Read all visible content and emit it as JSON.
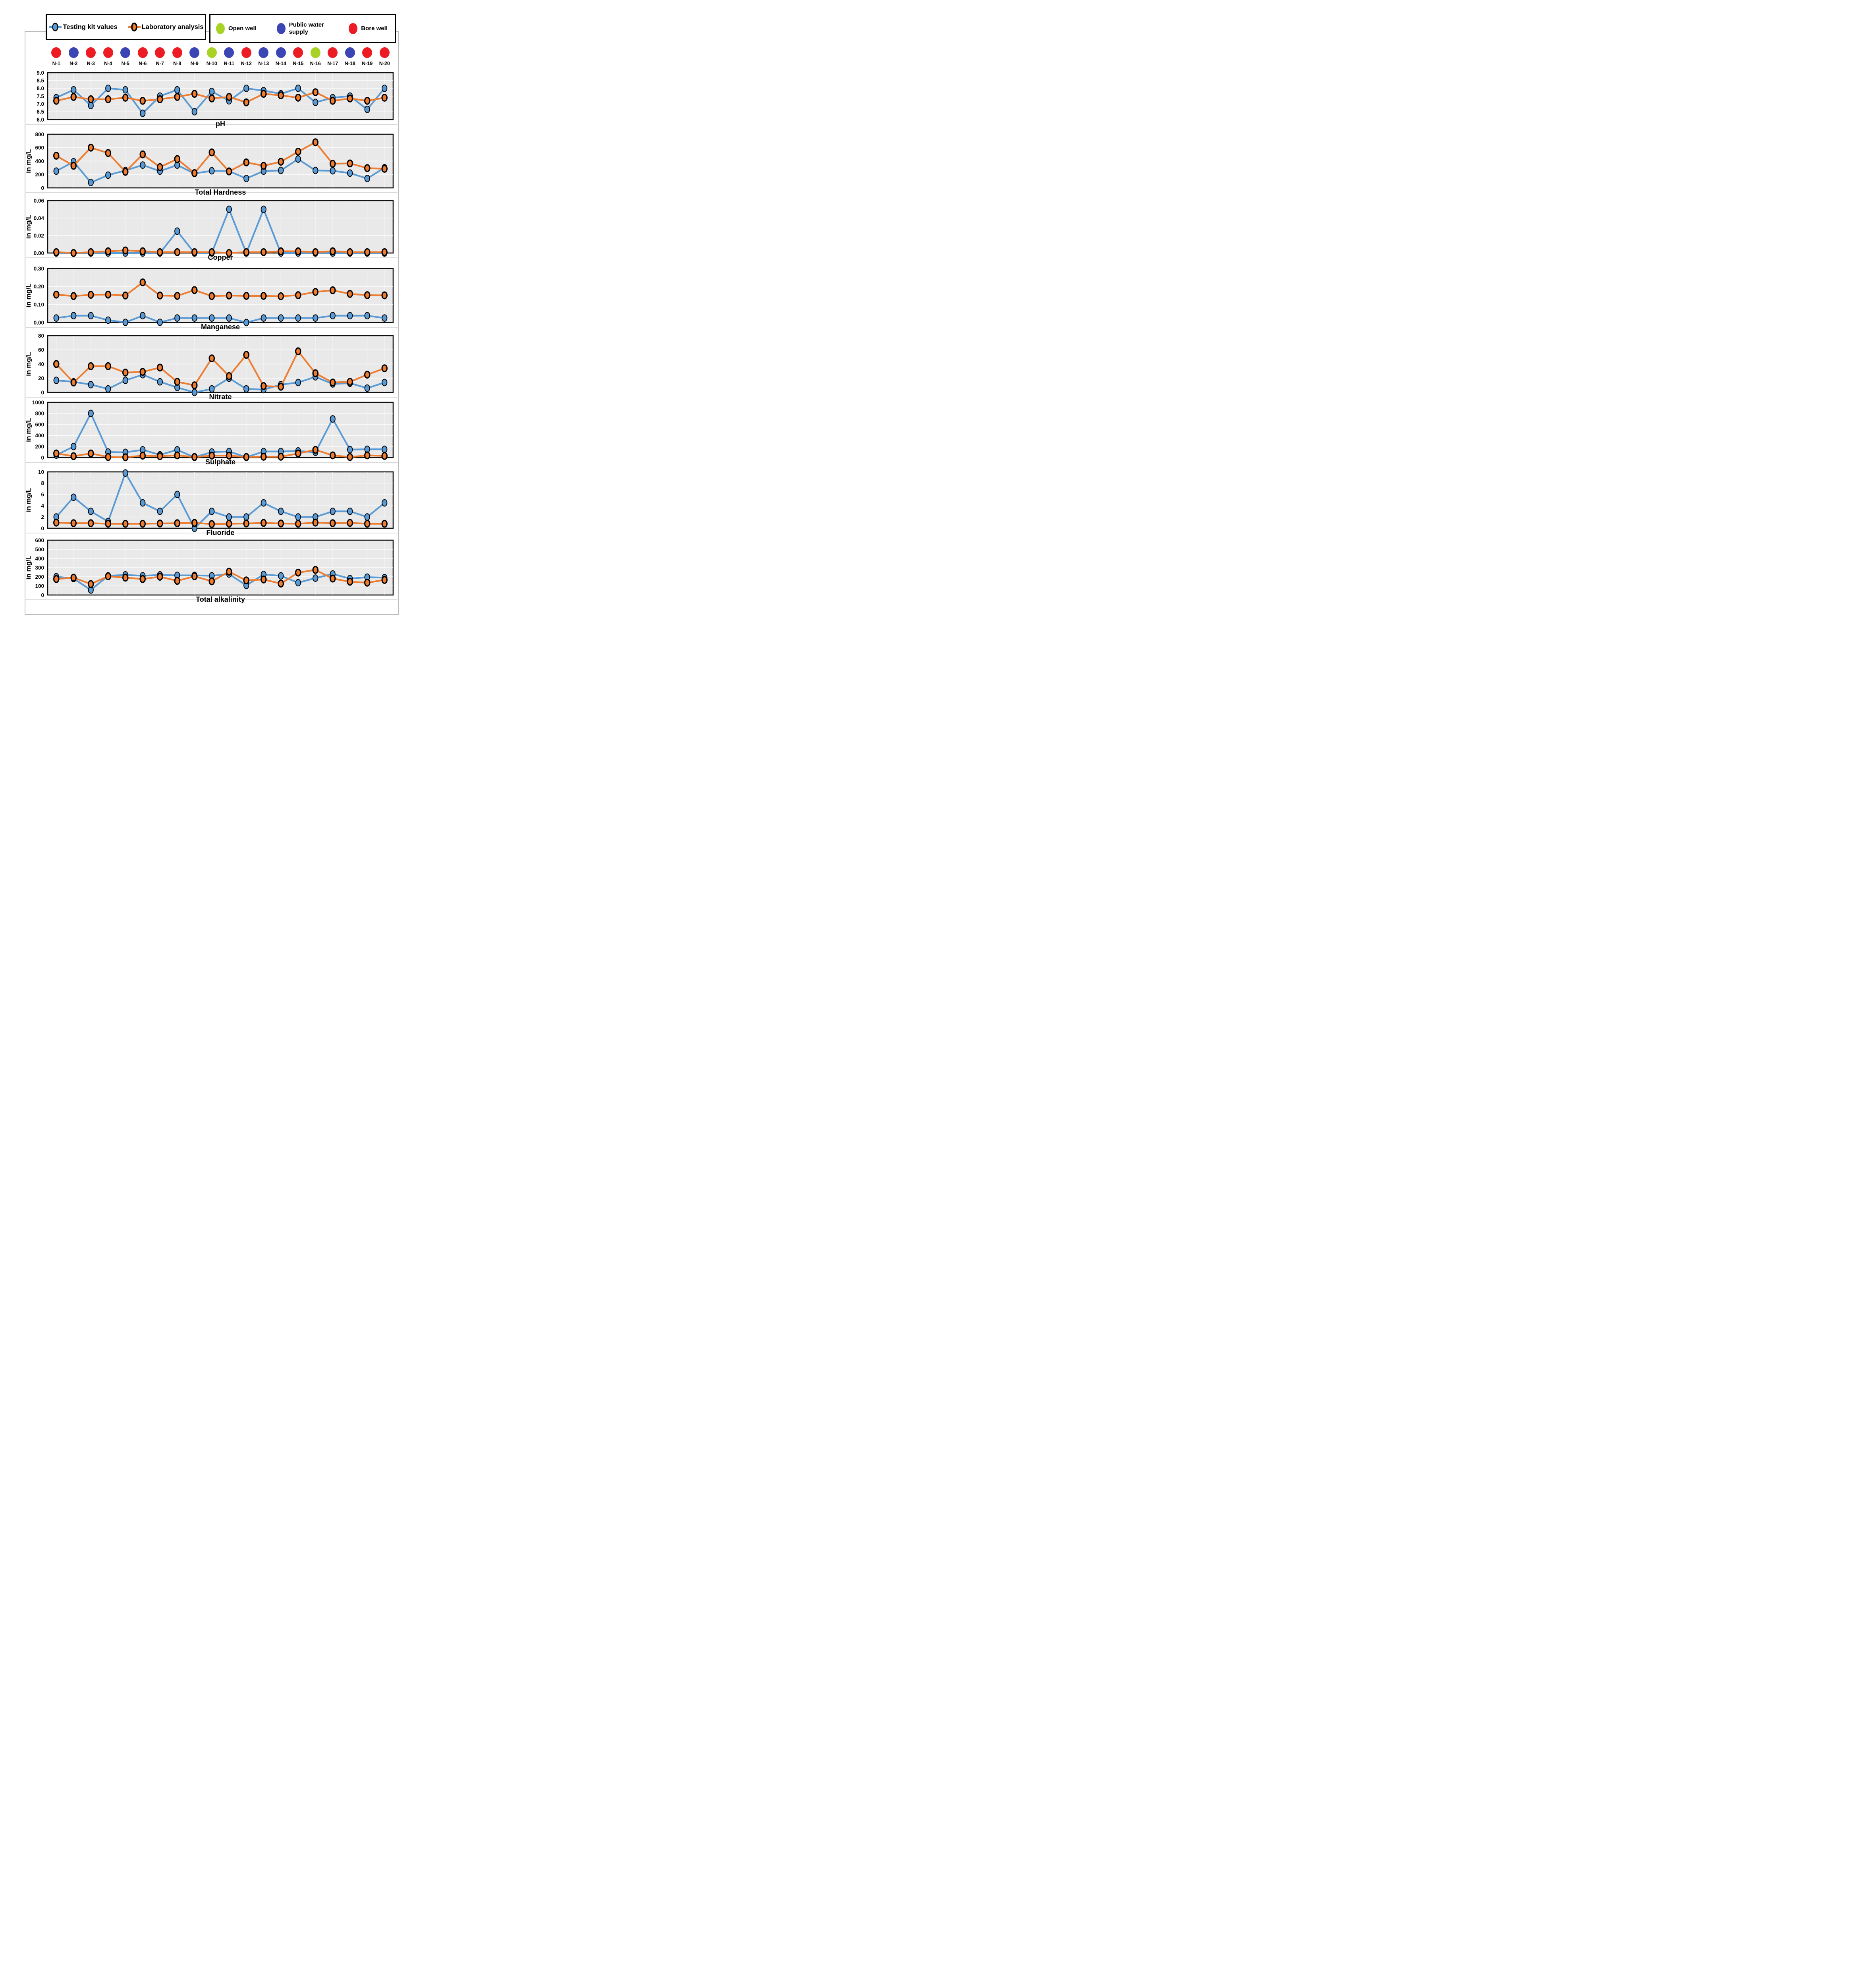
{
  "legend": {
    "series": [
      {
        "label": "Testing kit values",
        "color": "#5B9BD5"
      },
      {
        "label": "Laboratory analysis",
        "color": "#ED7D31"
      }
    ],
    "well_types": [
      {
        "key": "open",
        "label": "Open well",
        "color": "#A8D324"
      },
      {
        "key": "public",
        "label": "Public water supply",
        "color": "#3B45B4"
      },
      {
        "key": "bore",
        "label": "Bore well",
        "color": "#ED1C24"
      }
    ]
  },
  "sites": {
    "labels": [
      "N-1",
      "N-2",
      "N-3",
      "N-4",
      "N-5",
      "N-6",
      "N-7",
      "N-8",
      "N-9",
      "N-10",
      "N-11",
      "N-12",
      "N-13",
      "N-14",
      "N-15",
      "N-16",
      "N-17",
      "N-18",
      "N-19",
      "N-20"
    ],
    "types": [
      "bore",
      "public",
      "bore",
      "bore",
      "public",
      "bore",
      "bore",
      "bore",
      "public",
      "open",
      "public",
      "bore",
      "public",
      "public",
      "bore",
      "open",
      "bore",
      "public",
      "bore",
      "bore"
    ]
  },
  "chart_data": [
    {
      "type": "line",
      "title": "pH",
      "ylabel": "",
      "ylim": [
        6.0,
        9.0
      ],
      "yticks": [
        "9.0",
        "8.5",
        "8.0",
        "7.5",
        "7.0",
        "6.5",
        "6.0"
      ],
      "grid": true,
      "legend_position": "top",
      "x_categories": [
        "N-1",
        "N-2",
        "N-3",
        "N-4",
        "N-5",
        "N-6",
        "N-7",
        "N-8",
        "N-9",
        "N-10",
        "N-11",
        "N-12",
        "N-13",
        "N-14",
        "N-15",
        "N-16",
        "N-17",
        "N-18",
        "N-19",
        "N-20"
      ],
      "series": [
        {
          "name": "Testing kit values",
          "color": "#5B9BD5",
          "values": [
            7.4,
            7.9,
            6.9,
            8.0,
            7.9,
            6.4,
            7.5,
            7.9,
            6.5,
            7.8,
            7.2,
            8.0,
            7.85,
            7.65,
            8.0,
            7.1,
            7.4,
            7.5,
            6.65,
            8.0
          ]
        },
        {
          "name": "Laboratory analysis",
          "color": "#ED7D31",
          "values": [
            7.2,
            7.45,
            7.3,
            7.3,
            7.4,
            7.2,
            7.3,
            7.45,
            7.65,
            7.35,
            7.45,
            7.1,
            7.65,
            7.55,
            7.4,
            7.75,
            7.2,
            7.35,
            7.2,
            7.4
          ]
        }
      ]
    },
    {
      "type": "line",
      "title": "Total Hardness",
      "ylabel": "in mg/L",
      "ylim": [
        0,
        800
      ],
      "yticks": [
        "800",
        "600",
        "400",
        "200",
        "0"
      ],
      "grid": true,
      "x_categories": [
        "N-1",
        "N-2",
        "N-3",
        "N-4",
        "N-5",
        "N-6",
        "N-7",
        "N-8",
        "N-9",
        "N-10",
        "N-11",
        "N-12",
        "N-13",
        "N-14",
        "N-15",
        "N-16",
        "N-17",
        "N-18",
        "N-19",
        "N-20"
      ],
      "series": [
        {
          "name": "Testing kit values",
          "color": "#5B9BD5",
          "values": [
            250,
            390,
            80,
            190,
            260,
            340,
            250,
            340,
            215,
            255,
            250,
            140,
            250,
            260,
            430,
            260,
            255,
            220,
            140,
            300
          ]
        },
        {
          "name": "Laboratory analysis",
          "color": "#ED7D31",
          "values": [
            480,
            330,
            600,
            520,
            240,
            500,
            310,
            430,
            220,
            530,
            245,
            380,
            330,
            390,
            540,
            680,
            360,
            365,
            295,
            285
          ]
        }
      ]
    },
    {
      "type": "line",
      "title": "Copper",
      "ylabel": "in mg/L",
      "ylim": [
        0,
        0.06
      ],
      "yticks": [
        "0.06",
        "0.04",
        "0.02",
        "0.00"
      ],
      "grid": true,
      "x_categories": [
        "N-1",
        "N-2",
        "N-3",
        "N-4",
        "N-5",
        "N-6",
        "N-7",
        "N-8",
        "N-9",
        "N-10",
        "N-11",
        "N-12",
        "N-13",
        "N-14",
        "N-15",
        "N-16",
        "N-17",
        "N-18",
        "N-19",
        "N-20"
      ],
      "series": [
        {
          "name": "Testing kit values",
          "color": "#5B9BD5",
          "values": [
            0,
            0,
            0,
            0,
            0,
            0,
            0,
            0.025,
            0,
            0,
            0.05,
            0,
            0.05,
            0,
            0,
            0,
            0,
            0,
            0,
            0
          ]
        },
        {
          "name": "Laboratory analysis",
          "color": "#ED7D31",
          "values": [
            0.001,
            0,
            0.001,
            0.002,
            0.003,
            0.002,
            0.001,
            0.001,
            0.001,
            0.001,
            0,
            0.001,
            0.001,
            0.002,
            0.002,
            0.001,
            0.002,
            0.001,
            0.001,
            0.001
          ]
        }
      ]
    },
    {
      "type": "line",
      "title": "Manganese",
      "ylabel": "in mg/L",
      "ylim": [
        0,
        0.3
      ],
      "yticks": [
        "0.30",
        "0.20",
        "0.10",
        "0.00"
      ],
      "grid": true,
      "x_categories": [
        "N-1",
        "N-2",
        "N-3",
        "N-4",
        "N-5",
        "N-6",
        "N-7",
        "N-8",
        "N-9",
        "N-10",
        "N-11",
        "N-12",
        "N-13",
        "N-14",
        "N-15",
        "N-16",
        "N-17",
        "N-18",
        "N-19",
        "N-20"
      ],
      "series": [
        {
          "name": "Testing kit values",
          "color": "#5B9BD5",
          "values": [
            0.025,
            0.038,
            0.038,
            0.013,
            0.001,
            0.038,
            0.001,
            0.025,
            0.025,
            0.025,
            0.025,
            0.0,
            0.025,
            0.025,
            0.025,
            0.025,
            0.038,
            0.038,
            0.038,
            0.025
          ]
        },
        {
          "name": "Laboratory analysis",
          "color": "#ED7D31",
          "values": [
            0.155,
            0.147,
            0.154,
            0.155,
            0.15,
            0.223,
            0.15,
            0.148,
            0.18,
            0.147,
            0.15,
            0.148,
            0.148,
            0.146,
            0.152,
            0.17,
            0.179,
            0.159,
            0.152,
            0.151
          ]
        }
      ]
    },
    {
      "type": "line",
      "title": "Nitrate",
      "ylabel": "in mg/L",
      "ylim": [
        0,
        80
      ],
      "yticks": [
        "80",
        "60",
        "40",
        "20",
        "0"
      ],
      "grid": true,
      "x_categories": [
        "N-1",
        "N-2",
        "N-3",
        "N-4",
        "N-5",
        "N-6",
        "N-7",
        "N-8",
        "N-9",
        "N-10",
        "N-11",
        "N-12",
        "N-13",
        "N-14",
        "N-15",
        "N-16",
        "N-17",
        "N-18",
        "N-19",
        "N-20"
      ],
      "series": [
        {
          "name": "Testing kit values",
          "color": "#5B9BD5",
          "values": [
            17,
            15,
            11,
            5,
            17,
            25,
            15,
            7,
            0,
            5,
            20,
            5,
            4,
            11,
            14,
            22,
            12,
            13,
            6,
            14
          ]
        },
        {
          "name": "Laboratory analysis",
          "color": "#ED7D31",
          "values": [
            40,
            14,
            37,
            37,
            28,
            29,
            35,
            15,
            10,
            48,
            23,
            53,
            9,
            8,
            58,
            27,
            14,
            15,
            25,
            34
          ]
        }
      ]
    },
    {
      "type": "line",
      "title": "Sulphate",
      "ylabel": "in mg/L",
      "ylim": [
        0,
        1000
      ],
      "yticks": [
        "1000",
        "800",
        "600",
        "400",
        "200",
        "0"
      ],
      "grid": true,
      "x_categories": [
        "N-1",
        "N-2",
        "N-3",
        "N-4",
        "N-5",
        "N-6",
        "N-7",
        "N-8",
        "N-9",
        "N-10",
        "N-11",
        "N-12",
        "N-13",
        "N-14",
        "N-15",
        "N-16",
        "N-17",
        "N-18",
        "N-19",
        "N-20"
      ],
      "series": [
        {
          "name": "Testing kit values",
          "color": "#5B9BD5",
          "values": [
            45,
            200,
            800,
            100,
            95,
            140,
            50,
            140,
            5,
            100,
            110,
            5,
            110,
            110,
            120,
            95,
            700,
            145,
            150,
            150
          ]
        },
        {
          "name": "Laboratory analysis",
          "color": "#ED7D31",
          "values": [
            75,
            25,
            75,
            10,
            5,
            35,
            25,
            40,
            10,
            35,
            35,
            10,
            15,
            15,
            75,
            140,
            40,
            10,
            40,
            30
          ]
        }
      ]
    },
    {
      "type": "line",
      "title": "Fluoride",
      "ylabel": "in mg/L",
      "ylim": [
        0,
        10
      ],
      "yticks": [
        "10",
        "8",
        "6",
        "4",
        "2",
        "0"
      ],
      "grid": true,
      "x_categories": [
        "N-1",
        "N-2",
        "N-3",
        "N-4",
        "N-5",
        "N-6",
        "N-7",
        "N-8",
        "N-9",
        "N-10",
        "N-11",
        "N-12",
        "N-13",
        "N-14",
        "N-15",
        "N-16",
        "N-17",
        "N-18",
        "N-19",
        "N-20"
      ],
      "series": [
        {
          "name": "Testing kit values",
          "color": "#5B9BD5",
          "values": [
            2.0,
            5.5,
            3.0,
            1.2,
            9.8,
            4.5,
            3.0,
            6.0,
            0,
            3.0,
            2.0,
            2.0,
            4.5,
            3.0,
            2.0,
            2.0,
            3.0,
            3.0,
            2.0,
            4.5
          ]
        },
        {
          "name": "Laboratory analysis",
          "color": "#ED7D31",
          "values": [
            1.0,
            0.9,
            0.9,
            0.8,
            0.8,
            0.8,
            0.85,
            0.9,
            0.95,
            0.75,
            0.8,
            0.85,
            0.95,
            0.85,
            0.8,
            1.0,
            0.9,
            0.95,
            0.8,
            0.8
          ]
        }
      ]
    },
    {
      "type": "line",
      "title": "Total alkalinity",
      "ylabel": "in mg/L",
      "ylim": [
        0,
        600
      ],
      "yticks": [
        "600",
        "500",
        "400",
        "300",
        "200",
        "100",
        "0"
      ],
      "grid": true,
      "x_categories": [
        "N-1",
        "N-2",
        "N-3",
        "N-4",
        "N-5",
        "N-6",
        "N-7",
        "N-8",
        "N-9",
        "N-10",
        "N-11",
        "N-12",
        "N-13",
        "N-14",
        "N-15",
        "N-16",
        "N-17",
        "N-18",
        "N-19",
        "N-20"
      ],
      "series": [
        {
          "name": "Testing kit values",
          "color": "#5B9BD5",
          "values": [
            200,
            180,
            55,
            210,
            220,
            210,
            220,
            215,
            215,
            210,
            230,
            105,
            225,
            210,
            135,
            185,
            230,
            180,
            195,
            190
          ]
        },
        {
          "name": "Laboratory analysis",
          "color": "#ED7D31",
          "values": [
            175,
            190,
            120,
            205,
            190,
            175,
            200,
            155,
            205,
            150,
            255,
            160,
            170,
            125,
            245,
            275,
            180,
            145,
            135,
            165
          ]
        }
      ]
    }
  ]
}
